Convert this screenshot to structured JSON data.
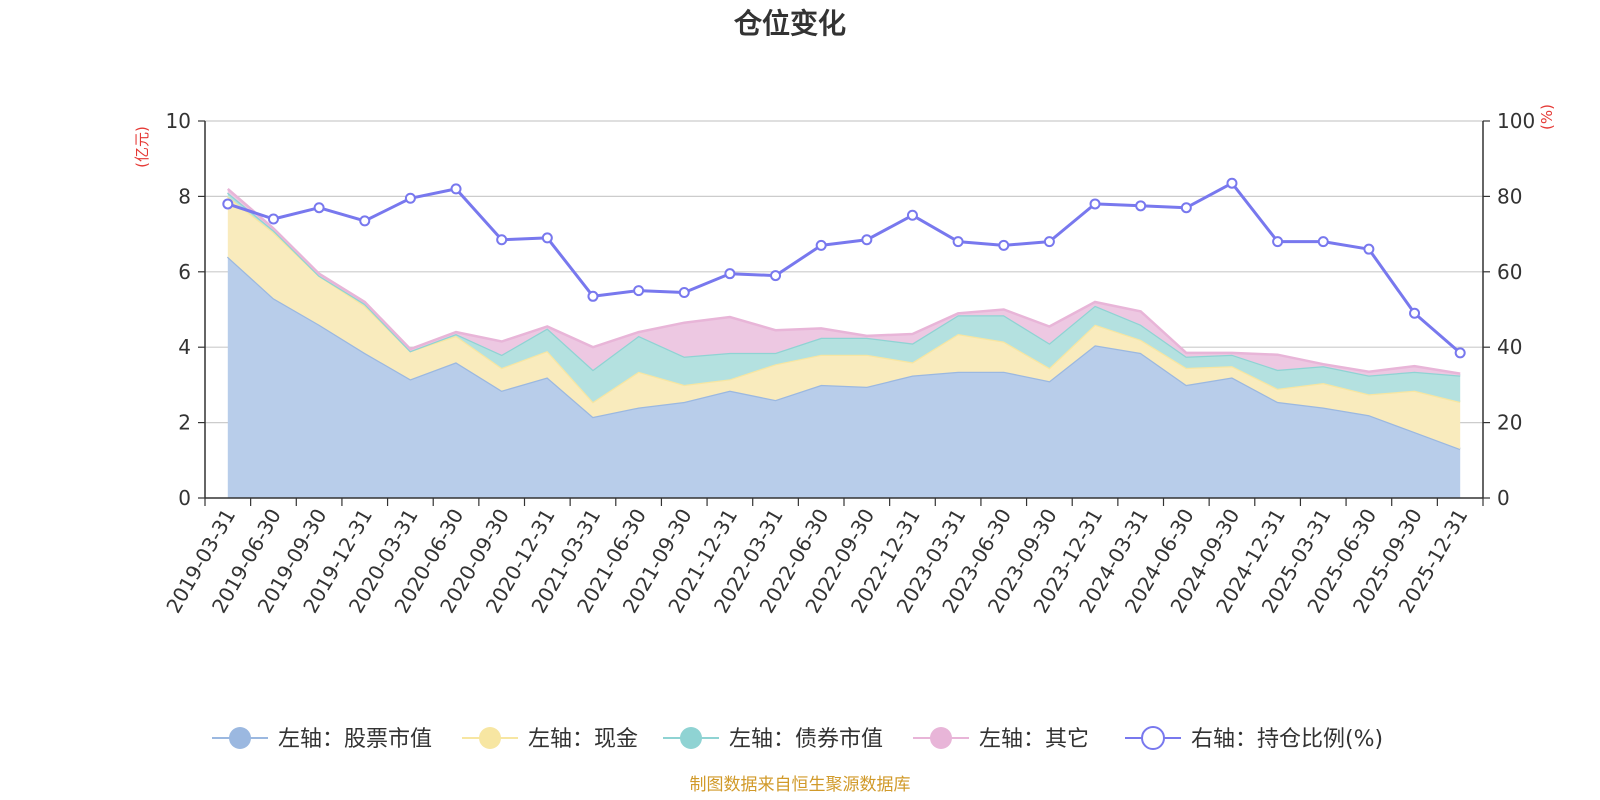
{
  "chart_data": {
    "type": "area",
    "title": "仓位变化",
    "source": "制图数据来自恒生聚源数据库",
    "left_axis": {
      "unit": "(亿元)",
      "ylim": [
        0,
        10
      ],
      "ticks": [
        0,
        2,
        4,
        6,
        8,
        10
      ]
    },
    "right_axis": {
      "unit": "(%)",
      "ylim": [
        0,
        100
      ],
      "ticks": [
        0,
        20,
        40,
        60,
        80,
        100
      ]
    },
    "categories": [
      "2019-03-31",
      "2019-06-30",
      "2019-09-30",
      "2019-12-31",
      "2020-03-31",
      "2020-06-30",
      "2020-09-30",
      "2020-12-31",
      "2021-03-31",
      "2021-06-30",
      "2021-09-30",
      "2021-12-31",
      "2022-03-31",
      "2022-06-30",
      "2022-09-30",
      "2022-12-31",
      "2023-03-31",
      "2023-06-30",
      "2023-09-30",
      "2023-12-31",
      "2024-03-31",
      "2024-06-30",
      "2024-09-30",
      "2024-12-31",
      "2025-03-31",
      "2025-06-30",
      "2025-09-30",
      "2025-12-31"
    ],
    "series": [
      {
        "name": "左轴：股票市值",
        "axis": "left",
        "color": "#9bb8e0",
        "fill": "#b8cdea",
        "values": [
          6.4,
          5.3,
          4.6,
          3.85,
          3.15,
          3.6,
          2.85,
          3.2,
          2.15,
          2.4,
          2.55,
          2.85,
          2.6,
          3.0,
          2.95,
          3.25,
          3.35,
          3.35,
          3.1,
          4.05,
          3.85,
          3.0,
          3.2,
          2.55,
          2.4,
          2.2,
          1.75,
          1.3
        ]
      },
      {
        "name": "左轴：现金",
        "axis": "left",
        "color": "#f7e6a2",
        "fill": "#f9ebbd",
        "values": [
          1.6,
          1.75,
          1.3,
          1.25,
          0.75,
          0.7,
          0.6,
          0.7,
          0.4,
          0.95,
          0.45,
          0.3,
          0.95,
          0.8,
          0.85,
          0.35,
          1.0,
          0.8,
          0.35,
          0.55,
          0.35,
          0.45,
          0.3,
          0.35,
          0.65,
          0.55,
          1.1,
          1.25
        ]
      },
      {
        "name": "左轴：债券市值",
        "axis": "left",
        "color": "#8fd3d3",
        "fill": "#b4e1e0",
        "values": [
          0.1,
          0.05,
          0,
          0.05,
          0,
          0.05,
          0.35,
          0.6,
          0.85,
          0.95,
          0.75,
          0.7,
          0.3,
          0.45,
          0.45,
          0.5,
          0.5,
          0.7,
          0.65,
          0.5,
          0.4,
          0.3,
          0.3,
          0.5,
          0.45,
          0.5,
          0.5,
          0.7
        ]
      },
      {
        "name": "左轴：其它",
        "axis": "left",
        "color": "#e8b5d8",
        "fill": "#edc8e2",
        "values": [
          0.1,
          0.05,
          0.05,
          0.05,
          0.05,
          0.05,
          0.35,
          0.05,
          0.6,
          0.1,
          0.9,
          0.95,
          0.6,
          0.25,
          0.05,
          0.25,
          0.05,
          0.15,
          0.45,
          0.1,
          0.35,
          0.1,
          0.05,
          0.4,
          0.05,
          0.1,
          0.15,
          0.05
        ]
      },
      {
        "name": "右轴：持仓比例(%)",
        "axis": "right",
        "color": "#7878ee",
        "values": [
          78,
          74,
          77,
          73.5,
          79.5,
          82,
          68.5,
          69,
          53.5,
          55,
          54.5,
          59.5,
          59,
          67,
          68.5,
          75,
          68,
          67,
          68,
          78,
          77.5,
          77,
          83.5,
          68,
          68,
          66,
          49,
          38.5
        ]
      }
    ]
  }
}
